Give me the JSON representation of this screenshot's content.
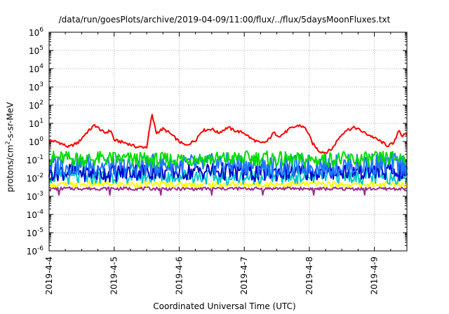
{
  "chart_data": {
    "type": "line",
    "title": "/data/run/goesPlots/archive/2019-04-09/11:00/flux/../flux/5daysMoonFluxes.txt",
    "xlabel": "Coordinated Universal Time (UTC)",
    "ylabel": {
      "pre": "protons/cm",
      "sup": "2",
      "post": "-s-sr-MeV"
    },
    "yscale": "log",
    "ylim": [
      1e-06,
      1000000.0
    ],
    "xlim": [
      0,
      5.5
    ],
    "grid": true,
    "y_ticks": [
      {
        "base": "10",
        "exp": "-6"
      },
      {
        "base": "10",
        "exp": "-5"
      },
      {
        "base": "10",
        "exp": "-4"
      },
      {
        "base": "10",
        "exp": "-3"
      },
      {
        "base": "10",
        "exp": "-2"
      },
      {
        "base": "10",
        "exp": "-1"
      },
      {
        "base": "10",
        "exp": "0"
      },
      {
        "base": "10",
        "exp": "1"
      },
      {
        "base": "10",
        "exp": "2"
      },
      {
        "base": "10",
        "exp": "3"
      },
      {
        "base": "10",
        "exp": "4"
      },
      {
        "base": "10",
        "exp": "5"
      },
      {
        "base": "10",
        "exp": "6"
      }
    ],
    "x_ticks": [
      "2019-4-4",
      "2019-4-5",
      "2019-4-6",
      "2019-4-7",
      "2019-4-8",
      "2019-4-9"
    ],
    "series": [
      {
        "color": "#ff0000",
        "level": 0.3,
        "amp": 0.08,
        "points": [
          [
            0,
            1.2
          ],
          [
            0.15,
            0.9
          ],
          [
            0.3,
            0.5
          ],
          [
            0.45,
            0.9
          ],
          [
            0.55,
            2.5
          ],
          [
            0.7,
            8
          ],
          [
            0.85,
            3
          ],
          [
            0.95,
            4
          ],
          [
            1.0,
            1.2
          ],
          [
            1.2,
            0.8
          ],
          [
            1.35,
            0.5
          ],
          [
            1.5,
            0.5
          ],
          [
            1.58,
            30
          ],
          [
            1.65,
            3
          ],
          [
            1.75,
            5
          ],
          [
            1.85,
            3
          ],
          [
            2.0,
            1.0
          ],
          [
            2.1,
            0.6
          ],
          [
            2.25,
            1.2
          ],
          [
            2.35,
            4
          ],
          [
            2.5,
            5
          ],
          [
            2.6,
            3
          ],
          [
            2.75,
            6
          ],
          [
            2.85,
            4
          ],
          [
            3.0,
            3
          ],
          [
            3.1,
            1.5
          ],
          [
            3.25,
            0.8
          ],
          [
            3.35,
            1.0
          ],
          [
            3.45,
            3
          ],
          [
            3.55,
            2
          ],
          [
            3.7,
            5
          ],
          [
            3.85,
            8
          ],
          [
            3.95,
            5
          ],
          [
            4.05,
            0.8
          ],
          [
            4.15,
            0.3
          ],
          [
            4.25,
            0.25
          ],
          [
            4.35,
            0.4
          ],
          [
            4.45,
            1.5
          ],
          [
            4.55,
            4
          ],
          [
            4.7,
            6
          ],
          [
            4.85,
            3
          ],
          [
            4.95,
            2
          ],
          [
            5.1,
            1.0
          ],
          [
            5.2,
            0.6
          ],
          [
            5.3,
            0.8
          ],
          [
            5.38,
            5
          ],
          [
            5.42,
            2
          ],
          [
            5.5,
            2.5
          ]
        ]
      },
      {
        "color": "#00dd00",
        "level": 0.11,
        "amp": 0.42,
        "points": []
      },
      {
        "color": "#1e78ff",
        "level": 0.05,
        "amp": 0.62,
        "points": []
      },
      {
        "color": "#0000cc",
        "level": 0.022,
        "amp": 0.5,
        "points": []
      },
      {
        "color": "#00c8c8",
        "level": 0.012,
        "amp": 0.4,
        "points": []
      },
      {
        "color": "#ffff00",
        "level": 0.0045,
        "amp": 0.16,
        "points": []
      },
      {
        "color": "#9b2f8c",
        "level": 0.0026,
        "amp": 0.09,
        "points": []
      }
    ]
  }
}
